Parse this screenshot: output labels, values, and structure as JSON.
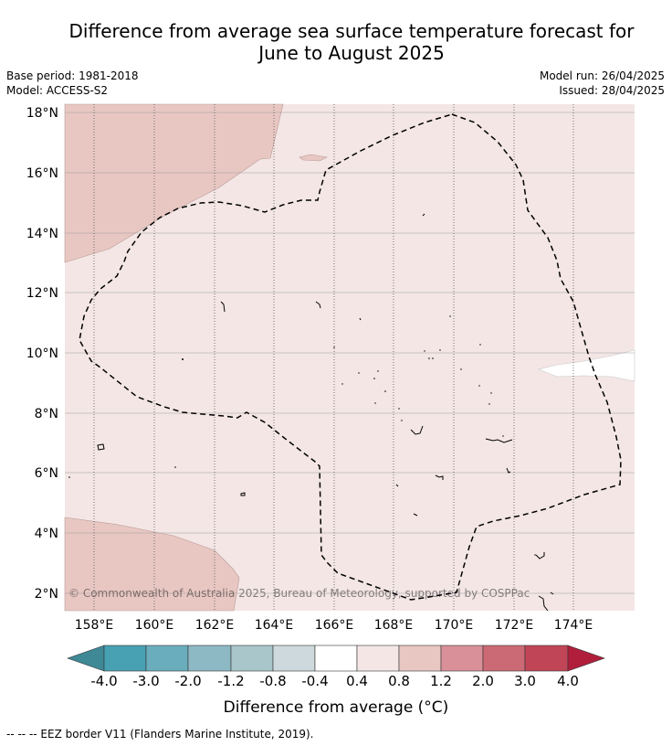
{
  "title_line1": "Difference from average sea surface temperature forecast for",
  "title_line2": "June to August 2025",
  "meta_left": [
    "Base period: 1981-2018",
    "Model: ACCESS-S2"
  ],
  "meta_right": [
    "Model run: 26/04/2025",
    "Issued: 28/04/2025"
  ],
  "map": {
    "lat_labels": [
      "18°N",
      "16°N",
      "14°N",
      "12°N",
      "10°N",
      "8°N",
      "6°N",
      "4°N",
      "2°N"
    ],
    "lon_labels": [
      "158°E",
      "160°E",
      "162°E",
      "164°E",
      "166°E",
      "168°E",
      "170°E",
      "172°E",
      "174°E"
    ],
    "copyright": "© Commonwealth of Australia 2025, Bureau of Meteorology, supported by COSPPac",
    "colors": {
      "band_0_4_to_0_8": "#f3e6e5",
      "band_0_8_to_1_2": "#e8c7c3",
      "band_neg0_4_to_0_4": "#ffffff"
    }
  },
  "colorbar": {
    "title": "Difference from average (°C)",
    "tick_labels": [
      "-4.0",
      "-3.0",
      "-2.0",
      "-1.2",
      "-0.8",
      "-0.4",
      "0.4",
      "0.8",
      "1.2",
      "2.0",
      "3.0",
      "4.0"
    ],
    "colors": [
      "#3f8896",
      "#48a1b3",
      "#6aaebe",
      "#8db9c5",
      "#a9c6cb",
      "#cdd9dc",
      "#ffffff",
      "#f3e6e5",
      "#e8c7c3",
      "#d99098",
      "#cb6a74",
      "#c04657",
      "#b01e3c"
    ]
  },
  "footer": "--  --  -- EEZ border V11 (Flanders Marine Institute, 2019)."
}
